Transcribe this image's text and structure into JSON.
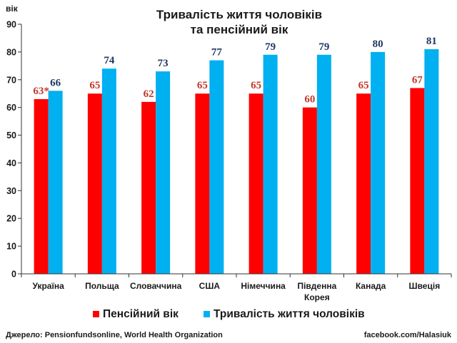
{
  "chart_data": {
    "type": "bar",
    "title_lines": [
      "Тривалість життя чоловіків",
      "та пенсійний вік"
    ],
    "ylabel": "вік",
    "ylim": [
      0,
      90
    ],
    "yticks": [
      "0",
      "10",
      "20",
      "30",
      "40",
      "50",
      "60",
      "70",
      "80",
      "90"
    ],
    "ytick_values": [
      0,
      10,
      20,
      30,
      40,
      50,
      60,
      70,
      80,
      90
    ],
    "grid": false,
    "legend_position": "bottom",
    "categories": [
      [
        "Україна"
      ],
      [
        "Польща"
      ],
      [
        "Словаччина"
      ],
      [
        "США"
      ],
      [
        "Німеччина"
      ],
      [
        "Південна",
        "Корея"
      ],
      [
        "Канада"
      ],
      [
        "Швеція"
      ]
    ],
    "series": [
      {
        "name": "Пенсійний вік",
        "color": "#ff0000",
        "label_color": "#c0392b",
        "values": [
          63,
          65,
          62,
          65,
          65,
          60,
          65,
          67
        ],
        "value_labels": [
          "63*",
          "65",
          "62",
          "65",
          "65",
          "60",
          "65",
          "67"
        ]
      },
      {
        "name": "Тривалість життя чоловіків",
        "color": "#00b0f0",
        "label_color": "#1f3864",
        "values": [
          66,
          74,
          73,
          77,
          79,
          79,
          80,
          81
        ],
        "value_labels": [
          "66",
          "74",
          "73",
          "77",
          "79",
          "79",
          "80",
          "81"
        ]
      }
    ]
  },
  "footer": {
    "source": "Джерело: Pensionfundsonline, World Health Organization",
    "credit": "facebook.com/Halasiuk"
  }
}
